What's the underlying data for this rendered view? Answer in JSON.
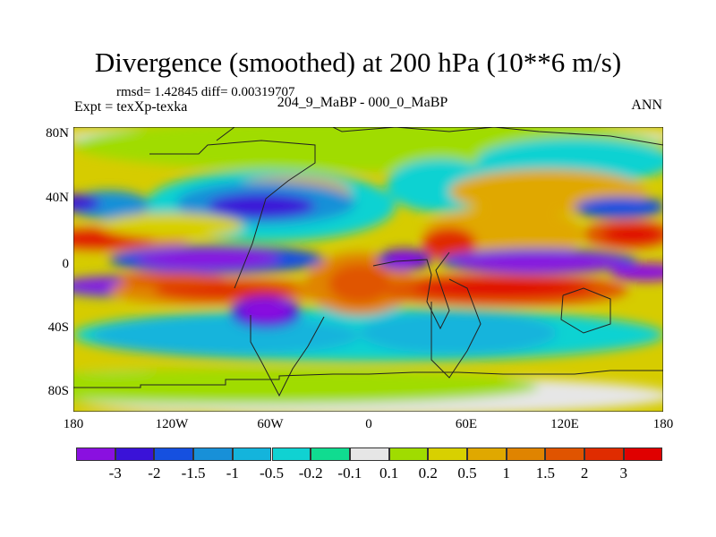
{
  "title": "Divergence (smoothed) at 200 hPa (10**6 m/s)",
  "stats": "rmsd= 1.42845 diff= 0.00319707",
  "experiment": "Expt = texXp-texka",
  "comparison": "204_9_MaBP - 000_0_MaBP",
  "season": "ANN",
  "lat_ticks": [
    "80N",
    "40N",
    "0",
    "40S",
    "80S"
  ],
  "lon_ticks": [
    "180",
    "120W",
    "60W",
    "0",
    "60E",
    "120E",
    "180"
  ],
  "colorbar": {
    "labels": [
      "-3",
      "-2",
      "-1.5",
      "-1",
      "-0.5",
      "-0.2",
      "-0.1",
      "0.1",
      "0.2",
      "0.5",
      "1",
      "1.5",
      "2",
      "3"
    ],
    "colors": [
      "#8a10e0",
      "#3a12d8",
      "#1550e0",
      "#1890d8",
      "#14b4dc",
      "#10d2d2",
      "#10dc90",
      "#e6e6e6",
      "#a0dc00",
      "#d8d000",
      "#e0a800",
      "#e08400",
      "#e05400",
      "#e02c00",
      "#e00000"
    ]
  }
}
